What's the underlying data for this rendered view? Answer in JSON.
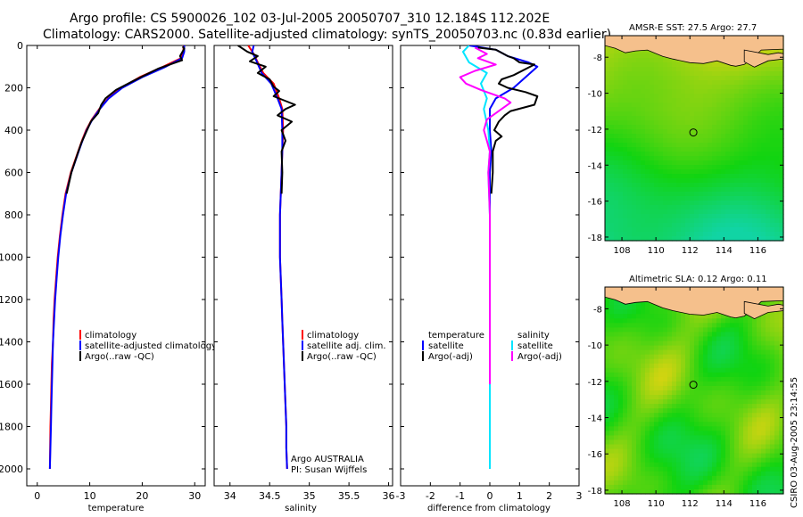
{
  "header": {
    "title_line1": "Argo profile: CS 5900026_102 03-Jul-2005 20050707_310 12.184S 112.202E",
    "title_line2": "Climatology: CARS2000. Satellite-adjusted climatology: synTS_20050703.nc (0.83d earlier)"
  },
  "maps": {
    "sst_title": "AMSR-E SST: 27.5 Argo: 27.7",
    "sla_title": "Altimetric SLA: 0.12 Argo: 0.11",
    "x_ticks": [
      "108",
      "110",
      "112",
      "114",
      "116"
    ],
    "y_ticks": [
      "-8",
      "-10",
      "-12",
      "-14",
      "-16",
      "-18"
    ],
    "float_position": {
      "lon": 112.202,
      "lat": -12.184
    },
    "colors": {
      "land": "#f5c08c",
      "coast": "#000000",
      "marker": "#000000"
    }
  },
  "credit": "CSIRO 03-Aug-2005 23:14:55",
  "chart_data": [
    {
      "type": "line",
      "panel": "temperature",
      "xlabel": "temperature",
      "ylabel": "depth",
      "xlim": [
        -2,
        32
      ],
      "ylim": [
        2080,
        0
      ],
      "x_ticks": [
        "0",
        "10",
        "20",
        "30"
      ],
      "y_ticks": [
        "0",
        "200",
        "400",
        "600",
        "800",
        "1000",
        "1200",
        "1400",
        "1600",
        "1800",
        "2000"
      ],
      "legend": [
        "climatology",
        "satellite-adjusted climatology",
        "Argo(..raw -QC)"
      ],
      "series": [
        {
          "name": "climatology",
          "color": "#ff0000",
          "points": [
            [
              27.9,
              0
            ],
            [
              27.8,
              30
            ],
            [
              27.4,
              60
            ],
            [
              24,
              100
            ],
            [
              19.5,
              150
            ],
            [
              16,
              200
            ],
            [
              13.5,
              250
            ],
            [
              11.8,
              300
            ],
            [
              10.4,
              350
            ],
            [
              9.3,
              400
            ],
            [
              8.5,
              450
            ],
            [
              7.8,
              500
            ],
            [
              6.4,
              600
            ],
            [
              5.4,
              700
            ],
            [
              4.8,
              800
            ],
            [
              4.3,
              900
            ],
            [
              3.9,
              1000
            ],
            [
              3.6,
              1100
            ],
            [
              3.3,
              1200
            ],
            [
              3.1,
              1300
            ],
            [
              3.0,
              1400
            ],
            [
              2.8,
              1500
            ],
            [
              2.7,
              1600
            ],
            [
              2.6,
              1700
            ],
            [
              2.5,
              1800
            ],
            [
              2.45,
              1900
            ],
            [
              2.4,
              2000
            ]
          ]
        },
        {
          "name": "satellite-adjusted climatology",
          "color": "#0000ff",
          "points": [
            [
              28.0,
              0
            ],
            [
              28.0,
              30
            ],
            [
              27.6,
              60
            ],
            [
              24.5,
              100
            ],
            [
              20,
              150
            ],
            [
              16.2,
              200
            ],
            [
              13.6,
              250
            ],
            [
              11.9,
              300
            ],
            [
              10.5,
              350
            ],
            [
              9.4,
              400
            ],
            [
              8.6,
              450
            ],
            [
              7.9,
              500
            ],
            [
              6.5,
              600
            ],
            [
              5.5,
              700
            ],
            [
              4.9,
              800
            ],
            [
              4.4,
              900
            ],
            [
              4.0,
              1000
            ],
            [
              3.7,
              1100
            ],
            [
              3.4,
              1200
            ],
            [
              3.2,
              1300
            ],
            [
              3.0,
              1400
            ],
            [
              2.9,
              1500
            ],
            [
              2.8,
              1600
            ],
            [
              2.7,
              1700
            ],
            [
              2.6,
              1800
            ],
            [
              2.5,
              1900
            ],
            [
              2.4,
              2000
            ]
          ]
        },
        {
          "name": "Argo(..raw -QC)",
          "color": "#000000",
          "points": [
            [
              27.7,
              5
            ],
            [
              28.0,
              15
            ],
            [
              27.2,
              50
            ],
            [
              27.6,
              70
            ],
            [
              23,
              110
            ],
            [
              18.5,
              165
            ],
            [
              15,
              210
            ],
            [
              13,
              250
            ],
            [
              12.2,
              280
            ],
            [
              11.6,
              320
            ],
            [
              10.2,
              360
            ],
            [
              9.3,
              410
            ],
            [
              8.4,
              460
            ],
            [
              7.7,
              510
            ],
            [
              6.5,
              600
            ],
            [
              5.6,
              700
            ]
          ]
        }
      ]
    },
    {
      "type": "line",
      "panel": "salinity",
      "xlabel": "salinity",
      "xlim": [
        33.8,
        36.05
      ],
      "ylim": [
        2080,
        0
      ],
      "x_ticks": [
        "34",
        "34.5",
        "35",
        "35.5",
        "36"
      ],
      "legend": [
        "climatology",
        "satellite adj. clim.",
        "Argo(..raw -QC)"
      ],
      "annotations": [
        "Argo AUSTRALIA",
        "PI: Susan Wijffels"
      ],
      "series": [
        {
          "name": "climatology",
          "color": "#ff0000",
          "points": [
            [
              34.23,
              0
            ],
            [
              34.3,
              40
            ],
            [
              34.35,
              80
            ],
            [
              34.42,
              130
            ],
            [
              34.55,
              180
            ],
            [
              34.62,
              250
            ],
            [
              34.66,
              300
            ],
            [
              34.67,
              400
            ],
            [
              34.66,
              500
            ],
            [
              34.65,
              600
            ],
            [
              34.64,
              700
            ],
            [
              34.63,
              800
            ],
            [
              34.63,
              900
            ],
            [
              34.63,
              1000
            ],
            [
              34.64,
              1100
            ],
            [
              34.65,
              1200
            ],
            [
              34.66,
              1300
            ],
            [
              34.67,
              1400
            ],
            [
              34.68,
              1500
            ],
            [
              34.69,
              1600
            ],
            [
              34.7,
              1700
            ],
            [
              34.71,
              1800
            ],
            [
              34.71,
              1900
            ],
            [
              34.72,
              2000
            ]
          ]
        },
        {
          "name": "satellite adjusted",
          "color": "#0000ff",
          "points": [
            [
              34.3,
              0
            ],
            [
              34.28,
              30
            ],
            [
              34.33,
              70
            ],
            [
              34.4,
              130
            ],
            [
              34.52,
              180
            ],
            [
              34.6,
              250
            ],
            [
              34.65,
              300
            ],
            [
              34.66,
              400
            ],
            [
              34.66,
              500
            ],
            [
              34.65,
              600
            ],
            [
              34.64,
              700
            ],
            [
              34.63,
              800
            ],
            [
              34.63,
              900
            ],
            [
              34.63,
              1000
            ],
            [
              34.64,
              1100
            ],
            [
              34.65,
              1200
            ],
            [
              34.66,
              1300
            ],
            [
              34.67,
              1400
            ],
            [
              34.68,
              1500
            ],
            [
              34.69,
              1600
            ],
            [
              34.7,
              1700
            ],
            [
              34.71,
              1800
            ],
            [
              34.71,
              1900
            ],
            [
              34.72,
              2000
            ]
          ]
        },
        {
          "name": "Argo(..raw -QC)",
          "color": "#000000",
          "points": [
            [
              34.1,
              0
            ],
            [
              34.22,
              30
            ],
            [
              34.35,
              50
            ],
            [
              34.25,
              75
            ],
            [
              34.45,
              100
            ],
            [
              34.35,
              130
            ],
            [
              34.5,
              160
            ],
            [
              34.55,
              195
            ],
            [
              34.62,
              215
            ],
            [
              34.55,
              240
            ],
            [
              34.82,
              280
            ],
            [
              34.7,
              300
            ],
            [
              34.6,
              330
            ],
            [
              34.78,
              360
            ],
            [
              34.65,
              400
            ],
            [
              34.7,
              450
            ],
            [
              34.65,
              500
            ],
            [
              34.66,
              600
            ],
            [
              34.65,
              700
            ]
          ]
        }
      ]
    },
    {
      "type": "line",
      "panel": "difference",
      "xlabel": "difference from climatology",
      "xlim": [
        -3,
        3
      ],
      "ylim": [
        2080,
        0
      ],
      "x_ticks": [
        "-3",
        "-2",
        "-1",
        "0",
        "1",
        "2",
        "3"
      ],
      "legend": [
        "temperature",
        "satellite",
        "Argo(-adj)",
        "salinity",
        "satellite",
        "Argo(-adj)"
      ],
      "series": [
        {
          "name": "temperature satellite",
          "color": "#0000ff",
          "points": [
            [
              -0.7,
              0
            ],
            [
              0.2,
              20
            ],
            [
              0.6,
              50
            ],
            [
              1.3,
              80
            ],
            [
              1.6,
              100
            ],
            [
              1.2,
              150
            ],
            [
              0.8,
              200
            ],
            [
              0.2,
              250
            ],
            [
              0,
              300
            ],
            [
              0,
              400
            ],
            [
              0.05,
              500
            ],
            [
              0,
              600
            ],
            [
              0,
              800
            ],
            [
              0,
              1000
            ],
            [
              0,
              1200
            ],
            [
              0,
              1400
            ],
            [
              0,
              1600
            ],
            [
              0,
              1800
            ],
            [
              0,
              2000
            ]
          ]
        },
        {
          "name": "temperature Argo(-adj)",
          "color": "#000000",
          "points": [
            [
              -0.4,
              10
            ],
            [
              0.2,
              20
            ],
            [
              0.6,
              50
            ],
            [
              0.8,
              60
            ],
            [
              1.0,
              80
            ],
            [
              1.5,
              90
            ],
            [
              0.8,
              140
            ],
            [
              0.4,
              160
            ],
            [
              0.3,
              180
            ],
            [
              0.6,
              200
            ],
            [
              1.2,
              220
            ],
            [
              1.6,
              240
            ],
            [
              1.5,
              280
            ],
            [
              0.7,
              310
            ],
            [
              0.5,
              330
            ],
            [
              0.3,
              360
            ],
            [
              0.15,
              400
            ],
            [
              0.4,
              430
            ],
            [
              0.2,
              450
            ],
            [
              0.1,
              500
            ],
            [
              0.1,
              600
            ],
            [
              0.05,
              700
            ]
          ]
        },
        {
          "name": "salinity satellite",
          "color": "#00e5ff",
          "points": [
            [
              -0.7,
              0
            ],
            [
              -0.9,
              30
            ],
            [
              -0.7,
              80
            ],
            [
              -0.1,
              130
            ],
            [
              -0.3,
              180
            ],
            [
              -0.1,
              250
            ],
            [
              -0.2,
              300
            ],
            [
              -0.05,
              400
            ],
            [
              0,
              500
            ],
            [
              -0.05,
              600
            ],
            [
              0,
              800
            ],
            [
              0,
              1000
            ],
            [
              0,
              1200
            ],
            [
              0,
              1500
            ],
            [
              0,
              1800
            ],
            [
              0,
              2000
            ]
          ]
        },
        {
          "name": "salinity Argo(-adj)",
          "color": "#ff00ff",
          "points": [
            [
              -0.5,
              10
            ],
            [
              -0.1,
              40
            ],
            [
              -0.4,
              60
            ],
            [
              0.2,
              90
            ],
            [
              -0.5,
              120
            ],
            [
              -1.0,
              150
            ],
            [
              -0.8,
              180
            ],
            [
              -0.3,
              210
            ],
            [
              0.5,
              250
            ],
            [
              0.7,
              270
            ],
            [
              0.3,
              310
            ],
            [
              -0.1,
              350
            ],
            [
              -0.2,
              400
            ],
            [
              -0.1,
              450
            ],
            [
              0,
              500
            ],
            [
              -0.05,
              600
            ],
            [
              0,
              800
            ],
            [
              0,
              1000
            ],
            [
              0,
              1200
            ],
            [
              0,
              1600
            ]
          ]
        }
      ]
    }
  ]
}
